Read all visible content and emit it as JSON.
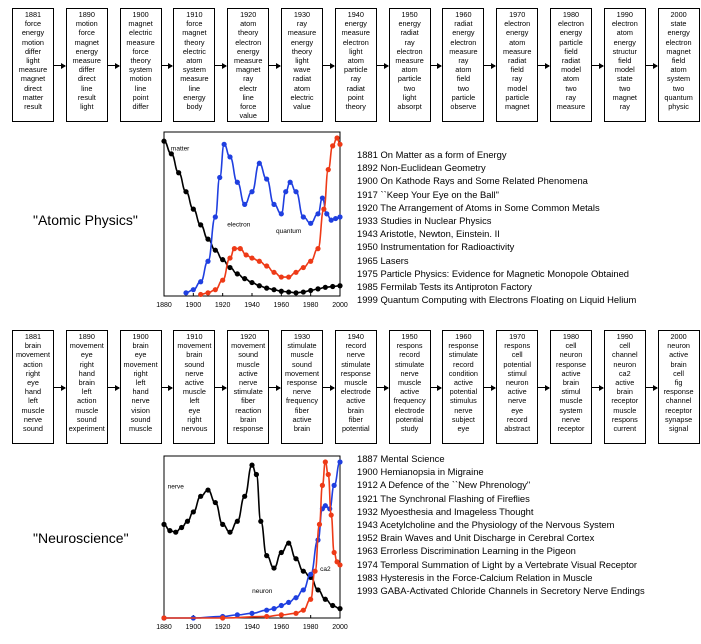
{
  "panels": [
    {
      "title": "\"Atomic Physics\"",
      "columns": [
        {
          "year": "1881",
          "words": [
            "force",
            "energy",
            "motion",
            "differ",
            "light",
            "measure",
            "magnet",
            "direct",
            "matter",
            "result"
          ]
        },
        {
          "year": "1890",
          "words": [
            "motion",
            "force",
            "magnet",
            "energy",
            "measure",
            "differ",
            "direct",
            "line",
            "result",
            "light"
          ]
        },
        {
          "year": "1900",
          "words": [
            "magnet",
            "electric",
            "measure",
            "force",
            "theory",
            "system",
            "motion",
            "line",
            "point",
            "differ"
          ]
        },
        {
          "year": "1910",
          "words": [
            "force",
            "magnet",
            "theory",
            "electric",
            "atom",
            "system",
            "measure",
            "line",
            "energy",
            "body"
          ]
        },
        {
          "year": "1920",
          "words": [
            "atom",
            "theory",
            "electron",
            "energy",
            "measure",
            "magnet",
            "ray",
            "electr",
            "line",
            "force",
            "value"
          ]
        },
        {
          "year": "1930",
          "words": [
            "ray",
            "measure",
            "energy",
            "theory",
            "light",
            "wave",
            "radiat",
            "atom",
            "electric",
            "value"
          ]
        },
        {
          "year": "1940",
          "words": [
            "energy",
            "measure",
            "electron",
            "light",
            "atom",
            "particle",
            "ray",
            "radiat",
            "point",
            "theory"
          ]
        },
        {
          "year": "1950",
          "words": [
            "energy",
            "radiat",
            "ray",
            "electron",
            "measure",
            "atom",
            "particle",
            "two",
            "light",
            "absorpt"
          ]
        },
        {
          "year": "1960",
          "words": [
            "radiat",
            "energy",
            "electron",
            "measure",
            "ray",
            "atom",
            "field",
            "two",
            "particle",
            "observe"
          ]
        },
        {
          "year": "1970",
          "words": [
            "electron",
            "energy",
            "atom",
            "measure",
            "radiat",
            "field",
            "ray",
            "model",
            "particle",
            "magnet"
          ]
        },
        {
          "year": "1980",
          "words": [
            "electron",
            "energy",
            "particle",
            "field",
            "radiat",
            "model",
            "atom",
            "two",
            "ray",
            "measure"
          ]
        },
        {
          "year": "1990",
          "words": [
            "electron",
            "atom",
            "energy",
            "structur",
            "field",
            "model",
            "state",
            "two",
            "magnet",
            "ray"
          ]
        },
        {
          "year": "2000",
          "words": [
            "state",
            "energy",
            "electron",
            "magnet",
            "field",
            "atom",
            "system",
            "two",
            "quantum",
            "physic"
          ]
        }
      ],
      "refs": [
        "1881 On Matter as a form of Energy",
        "1892 Non-Euclidean Geometry",
        "1900 On Kathode Rays and Some Related Phenomena",
        "1917 ``Keep Your Eye on the Ball\"",
        "1920 The Arrangement of Atoms in Some Common Metals",
        "1933 Studies in Nuclear Physics",
        "1943 Aristotle, Newton, Einstein. II",
        "1950 Instrumentation for Radioactivity",
        "1965 Lasers",
        "1975 Particle Physics: Evidence for Magnetic Monopole Obtained",
        "1985 Fermilab Tests its Antiproton Factory",
        "1999 Quantum Computing with Electrons Floating on Liquid Helium"
      ]
    },
    {
      "title": "\"Neuroscience\"",
      "columns": [
        {
          "year": "1881",
          "words": [
            "brain",
            "movement",
            "action",
            "right",
            "eye",
            "hand",
            "left",
            "muscle",
            "nerve",
            "sound"
          ]
        },
        {
          "year": "1890",
          "words": [
            "movement",
            "eye",
            "right",
            "hand",
            "brain",
            "left",
            "action",
            "muscle",
            "sound",
            "experiment"
          ]
        },
        {
          "year": "1900",
          "words": [
            "brain",
            "eye",
            "movement",
            "right",
            "left",
            "hand",
            "nerve",
            "vision",
            "sound",
            "muscle"
          ]
        },
        {
          "year": "1910",
          "words": [
            "movement",
            "brain",
            "sound",
            "nerve",
            "active",
            "muscle",
            "left",
            "eye",
            "right",
            "nervous"
          ]
        },
        {
          "year": "1920",
          "words": [
            "movement",
            "sound",
            "muscle",
            "active",
            "nerve",
            "stimulate",
            "fiber",
            "reaction",
            "brain",
            "response"
          ]
        },
        {
          "year": "1930",
          "words": [
            "stimulate",
            "muscle",
            "sound",
            "movement",
            "response",
            "nerve",
            "frequency",
            "fiber",
            "active",
            "brain"
          ]
        },
        {
          "year": "1940",
          "words": [
            "record",
            "nerve",
            "stimulate",
            "response",
            "muscle",
            "electrode",
            "active",
            "brain",
            "fiber",
            "potential"
          ]
        },
        {
          "year": "1950",
          "words": [
            "respons",
            "record",
            "stimulate",
            "nerve",
            "muscle",
            "active",
            "frequency",
            "electrode",
            "potential",
            "study"
          ]
        },
        {
          "year": "1960",
          "words": [
            "response",
            "stimulate",
            "record",
            "condition",
            "active",
            "potential",
            "stimulus",
            "nerve",
            "subject",
            "eye"
          ]
        },
        {
          "year": "1970",
          "words": [
            "respons",
            "cell",
            "potential",
            "stimul",
            "neuron",
            "active",
            "nerve",
            "eye",
            "record",
            "abstract"
          ]
        },
        {
          "year": "1980",
          "words": [
            "cell",
            "neuron",
            "response",
            "active",
            "brain",
            "stimul",
            "muscle",
            "system",
            "nerve",
            "receptor"
          ]
        },
        {
          "year": "1990",
          "words": [
            "cell",
            "channel",
            "neuron",
            "ca2",
            "active",
            "brain",
            "receptor",
            "muscle",
            "respons",
            "current"
          ]
        },
        {
          "year": "2000",
          "words": [
            "neuron",
            "active",
            "brain",
            "cell",
            "fig",
            "response",
            "channel",
            "receptor",
            "synapse",
            "signal"
          ]
        }
      ],
      "refs": [
        "1887 Mental Science",
        "1900 Hemianopsia in Migraine",
        "1912 A Defence of the ``New Phrenology\"",
        "1921 The Synchronal Flashing of Fireflies",
        "1932 Myoesthesia and Imageless Thought",
        "1943 Acetylcholine and the Physiology of the Nervous System",
        "1952 Brain Waves and Unit Discharge in Cerebral Cortex",
        "1963 Errorless Discrimination Learning in the Pigeon",
        "1974 Temporal Summation of Light by a Vertebrate Visual Receptor",
        "1983 Hysteresis in the Force-Calcium Relation in Muscle",
        "1993 GABA-Activated Chloride Channels in Secretory Nerve Endings"
      ]
    }
  ],
  "chart_data": [
    {
      "type": "line",
      "xlim": [
        1880,
        2000
      ],
      "x_ticks": [
        "1880",
        "1900",
        "1920",
        "1940",
        "1960",
        "1980",
        "2000"
      ],
      "colors": {
        "matter": "#000000",
        "electron": "#1f3fe0",
        "quantum": "#ee3a17"
      },
      "series": [
        {
          "name": "matter",
          "x": [
            1880,
            1885,
            1890,
            1895,
            1900,
            1905,
            1910,
            1915,
            1920,
            1925,
            1930,
            1935,
            1940,
            1945,
            1950,
            1955,
            1960,
            1965,
            1970,
            1975,
            1980,
            1985,
            1990,
            1995,
            2000
          ],
          "y": [
            0.98,
            0.9,
            0.78,
            0.66,
            0.55,
            0.45,
            0.36,
            0.29,
            0.23,
            0.18,
            0.14,
            0.11,
            0.085,
            0.065,
            0.05,
            0.04,
            0.03,
            0.025,
            0.02,
            0.025,
            0.035,
            0.045,
            0.055,
            0.06,
            0.065
          ]
        },
        {
          "name": "electron",
          "x": [
            1895,
            1900,
            1905,
            1910,
            1915,
            1918,
            1921,
            1925,
            1930,
            1935,
            1940,
            1945,
            1950,
            1955,
            1960,
            1963,
            1966,
            1970,
            1975,
            1980,
            1985,
            1988,
            1991,
            1994,
            1997,
            2000
          ],
          "y": [
            0.02,
            0.04,
            0.09,
            0.22,
            0.5,
            0.75,
            0.96,
            0.88,
            0.72,
            0.58,
            0.66,
            0.84,
            0.74,
            0.58,
            0.52,
            0.66,
            0.72,
            0.66,
            0.5,
            0.46,
            0.52,
            0.62,
            0.52,
            0.48,
            0.49,
            0.5
          ]
        },
        {
          "name": "quantum",
          "x": [
            1905,
            1910,
            1915,
            1920,
            1925,
            1928,
            1932,
            1936,
            1940,
            1945,
            1950,
            1955,
            1960,
            1965,
            1970,
            1975,
            1980,
            1985,
            1989,
            1992,
            1995,
            1998,
            2000
          ],
          "y": [
            0.01,
            0.02,
            0.04,
            0.1,
            0.24,
            0.3,
            0.3,
            0.26,
            0.24,
            0.22,
            0.19,
            0.15,
            0.12,
            0.12,
            0.15,
            0.18,
            0.22,
            0.3,
            0.55,
            0.8,
            0.95,
            1.0,
            0.96
          ]
        }
      ]
    },
    {
      "type": "line",
      "xlim": [
        1880,
        2000
      ],
      "x_ticks": [
        "1880",
        "1900",
        "1920",
        "1940",
        "1960",
        "1980",
        "2000"
      ],
      "colors": {
        "nerve": "#000000",
        "neuron": "#1f3fe0",
        "ca2": "#ee3a17"
      },
      "series": [
        {
          "name": "nerve",
          "x": [
            1880,
            1884,
            1888,
            1892,
            1896,
            1900,
            1905,
            1910,
            1915,
            1920,
            1925,
            1930,
            1935,
            1940,
            1943,
            1946,
            1950,
            1955,
            1960,
            1965,
            1970,
            1975,
            1980,
            1985,
            1990,
            1995,
            2000
          ],
          "y": [
            0.6,
            0.56,
            0.55,
            0.58,
            0.62,
            0.68,
            0.78,
            0.82,
            0.74,
            0.6,
            0.55,
            0.62,
            0.78,
            0.98,
            0.92,
            0.62,
            0.4,
            0.32,
            0.42,
            0.48,
            0.38,
            0.3,
            0.26,
            0.18,
            0.12,
            0.08,
            0.06
          ]
        },
        {
          "name": "neuron",
          "x": [
            1880,
            1900,
            1920,
            1930,
            1940,
            1950,
            1955,
            1960,
            1965,
            1970,
            1975,
            1980,
            1985,
            1988,
            1990,
            1993,
            1996,
            2000
          ],
          "y": [
            0.0,
            0.0,
            0.01,
            0.02,
            0.03,
            0.05,
            0.06,
            0.08,
            0.1,
            0.13,
            0.18,
            0.28,
            0.5,
            0.7,
            0.72,
            0.7,
            0.85,
            1.0
          ]
        },
        {
          "name": "ca2",
          "x": [
            1880,
            1920,
            1950,
            1960,
            1970,
            1975,
            1980,
            1983,
            1986,
            1988,
            1990,
            1992,
            1994,
            1996,
            1998,
            2000
          ],
          "y": [
            0.0,
            0.0,
            0.01,
            0.02,
            0.03,
            0.05,
            0.12,
            0.3,
            0.6,
            0.85,
            1.0,
            0.92,
            0.66,
            0.42,
            0.36,
            0.34
          ]
        }
      ]
    }
  ]
}
